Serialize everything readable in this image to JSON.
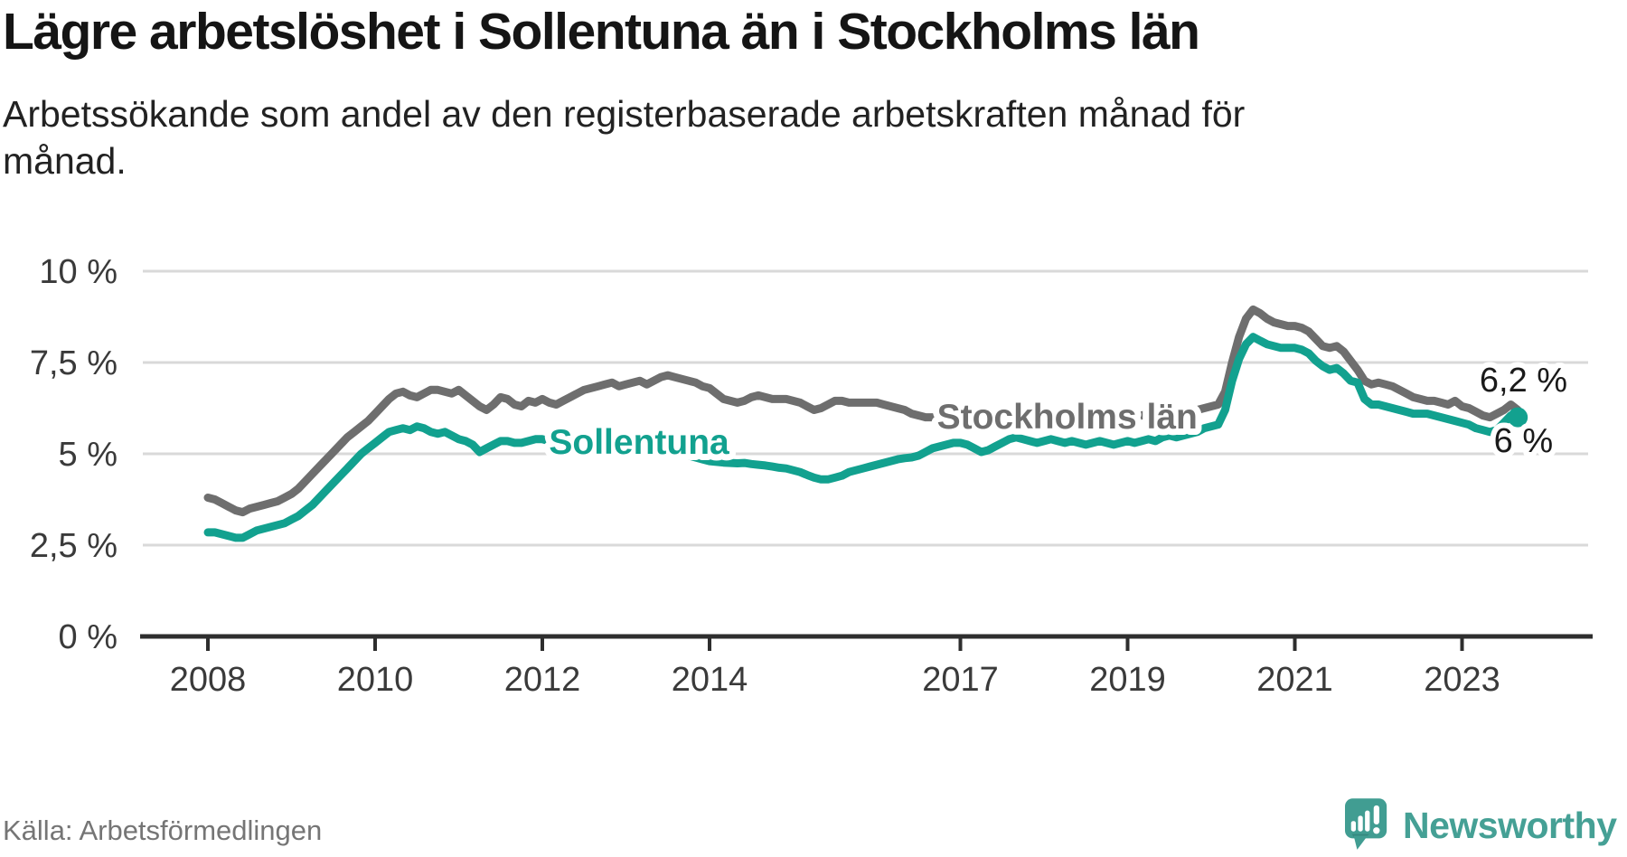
{
  "header": {
    "title": "Lägre arbetslöshet i Sollentuna än i Stockholms län",
    "subtitle": "Arbetssökande som andel av den registerbaserade arbetskraften månad för månad."
  },
  "footer": {
    "source": "Källa: Arbetsförmedlingen",
    "logo_text": "Newsworthy"
  },
  "colors": {
    "accent_teal": "#12a18f",
    "line_gray": "#6e6e6e",
    "grid": "#d9d9d9",
    "axis": "#2e2e2e",
    "tick_label": "#3a3a3a",
    "annotation_text": "#1a1a1a",
    "logo_teal": "#45a095"
  },
  "chart_data": {
    "type": "line",
    "title": "Lägre arbetslöshet i Sollentuna än i Stockholms län",
    "subtitle": "Arbetssökande som andel av den registerbaserade arbetskraften månad för månad.",
    "x_unit": "month",
    "x_range": [
      "2008-01",
      "2023-09"
    ],
    "x_tick_years": [
      2008,
      2010,
      2012,
      2014,
      2017,
      2019,
      2021,
      2023
    ],
    "x_tick_labels": [
      "2008",
      "2010",
      "2012",
      "2014",
      "2017",
      "2019",
      "2021",
      "2023"
    ],
    "y_ticks": [
      0,
      2.5,
      5,
      7.5,
      10
    ],
    "y_tick_labels": [
      "0 %",
      "2,5 %",
      "5 %",
      "7,5 %",
      "10 %"
    ],
    "ylim": [
      0,
      10.4
    ],
    "grid": true,
    "legend_position": "inline-labels",
    "series": [
      {
        "name": "Stockholms län",
        "color": "#6e6e6e",
        "label_anchor": {
          "year": 2016.72,
          "pct": 5.69
        },
        "end_label": {
          "text": "6,2 %",
          "year": 2023.21,
          "pct": 6.71
        },
        "end_dot": false,
        "values": [
          3.8,
          3.75,
          3.65,
          3.55,
          3.45,
          3.4,
          3.5,
          3.55,
          3.6,
          3.65,
          3.7,
          3.8,
          3.9,
          4.05,
          4.25,
          4.45,
          4.65,
          4.85,
          5.05,
          5.25,
          5.45,
          5.6,
          5.75,
          5.9,
          6.1,
          6.3,
          6.5,
          6.65,
          6.7,
          6.6,
          6.55,
          6.65,
          6.75,
          6.75,
          6.7,
          6.65,
          6.75,
          6.6,
          6.45,
          6.3,
          6.2,
          6.35,
          6.55,
          6.5,
          6.35,
          6.3,
          6.45,
          6.4,
          6.5,
          6.4,
          6.35,
          6.45,
          6.55,
          6.65,
          6.75,
          6.8,
          6.85,
          6.9,
          6.95,
          6.85,
          6.9,
          6.95,
          7.0,
          6.9,
          7.0,
          7.1,
          7.15,
          7.1,
          7.05,
          7.0,
          6.95,
          6.85,
          6.8,
          6.65,
          6.5,
          6.45,
          6.4,
          6.45,
          6.55,
          6.6,
          6.55,
          6.5,
          6.5,
          6.5,
          6.45,
          6.4,
          6.3,
          6.2,
          6.25,
          6.35,
          6.45,
          6.45,
          6.4,
          6.4,
          6.4,
          6.4,
          6.4,
          6.35,
          6.3,
          6.25,
          6.2,
          6.1,
          6.05,
          6.0,
          6.0,
          5.95,
          5.95,
          5.95,
          5.95,
          5.9,
          5.9,
          5.95,
          6.0,
          6.0,
          5.95,
          5.9,
          5.9,
          5.95,
          6.0,
          6.0,
          6.0,
          5.95,
          5.9,
          5.9,
          5.95,
          6.0,
          6.0,
          5.95,
          5.95,
          6.0,
          6.0,
          6.05,
          6.05,
          6.0,
          6.05,
          6.1,
          6.1,
          6.05,
          6.1,
          6.15,
          6.1,
          6.15,
          6.2,
          6.25,
          6.3,
          6.35,
          6.7,
          7.5,
          8.2,
          8.7,
          8.95,
          8.85,
          8.7,
          8.6,
          8.55,
          8.5,
          8.5,
          8.45,
          8.35,
          8.15,
          7.95,
          7.9,
          7.95,
          7.8,
          7.55,
          7.3,
          7.0,
          6.9,
          6.95,
          6.9,
          6.85,
          6.75,
          6.65,
          6.55,
          6.5,
          6.45,
          6.45,
          6.4,
          6.35,
          6.45,
          6.3,
          6.25,
          6.15,
          6.05,
          6.0,
          6.1,
          6.2,
          6.35,
          6.2
        ]
      },
      {
        "name": "Sollentuna",
        "color": "#12a18f",
        "label_anchor": {
          "year": 2012.08,
          "pct": 5.0
        },
        "end_label": {
          "text": "6 %",
          "year": 2023.38,
          "pct": 5.05
        },
        "end_dot": true,
        "values": [
          2.85,
          2.85,
          2.8,
          2.75,
          2.7,
          2.7,
          2.8,
          2.9,
          2.95,
          3.0,
          3.05,
          3.1,
          3.2,
          3.3,
          3.45,
          3.6,
          3.8,
          4.0,
          4.2,
          4.4,
          4.6,
          4.8,
          5.0,
          5.15,
          5.3,
          5.45,
          5.6,
          5.65,
          5.7,
          5.65,
          5.75,
          5.7,
          5.6,
          5.55,
          5.6,
          5.5,
          5.4,
          5.35,
          5.25,
          5.05,
          5.15,
          5.25,
          5.35,
          5.35,
          5.3,
          5.3,
          5.35,
          5.4,
          5.4,
          5.35,
          5.3,
          5.25,
          5.3,
          5.25,
          5.2,
          5.25,
          5.3,
          5.35,
          5.4,
          5.45,
          5.4,
          5.35,
          5.3,
          5.25,
          5.2,
          5.15,
          5.1,
          5.05,
          5.0,
          4.95,
          4.9,
          4.85,
          4.8,
          4.78,
          4.76,
          4.75,
          4.74,
          4.75,
          4.72,
          4.7,
          4.68,
          4.65,
          4.62,
          4.6,
          4.55,
          4.5,
          4.42,
          4.35,
          4.3,
          4.3,
          4.35,
          4.4,
          4.5,
          4.55,
          4.6,
          4.65,
          4.7,
          4.75,
          4.8,
          4.85,
          4.88,
          4.9,
          4.95,
          5.05,
          5.15,
          5.2,
          5.25,
          5.3,
          5.3,
          5.25,
          5.15,
          5.05,
          5.1,
          5.2,
          5.3,
          5.4,
          5.45,
          5.4,
          5.35,
          5.3,
          5.35,
          5.4,
          5.35,
          5.3,
          5.35,
          5.3,
          5.25,
          5.3,
          5.35,
          5.3,
          5.25,
          5.3,
          5.35,
          5.3,
          5.35,
          5.4,
          5.35,
          5.45,
          5.5,
          5.45,
          5.5,
          5.55,
          5.6,
          5.7,
          5.75,
          5.8,
          6.2,
          7.0,
          7.6,
          8.0,
          8.2,
          8.1,
          8.0,
          7.95,
          7.9,
          7.9,
          7.9,
          7.85,
          7.75,
          7.55,
          7.4,
          7.3,
          7.35,
          7.2,
          7.0,
          6.95,
          6.5,
          6.35,
          6.35,
          6.3,
          6.25,
          6.2,
          6.15,
          6.1,
          6.1,
          6.1,
          6.05,
          6.0,
          5.95,
          5.9,
          5.85,
          5.8,
          5.7,
          5.65,
          5.6,
          5.65,
          5.85,
          6.05,
          6.0
        ]
      }
    ]
  }
}
